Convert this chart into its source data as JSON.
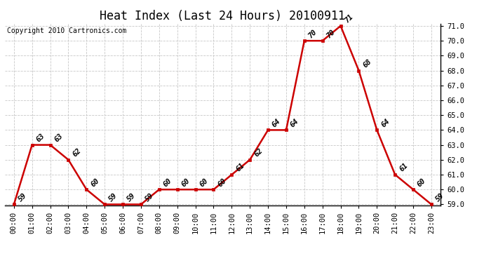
{
  "title": "Heat Index (Last 24 Hours) 20100911",
  "copyright_text": "Copyright 2010 Cartronics.com",
  "hours": [
    0,
    1,
    2,
    3,
    4,
    5,
    6,
    7,
    8,
    9,
    10,
    11,
    12,
    13,
    14,
    15,
    16,
    17,
    18,
    19,
    20,
    21,
    22,
    23
  ],
  "values": [
    59,
    63,
    63,
    62,
    60,
    59,
    59,
    59,
    60,
    60,
    60,
    60,
    61,
    62,
    64,
    64,
    70,
    70,
    71,
    68,
    64,
    61,
    60,
    59
  ],
  "ylim_min": 59.0,
  "ylim_max": 71.0,
  "yticks": [
    59.0,
    60.0,
    61.0,
    62.0,
    63.0,
    64.0,
    65.0,
    66.0,
    67.0,
    68.0,
    69.0,
    70.0,
    71.0
  ],
  "line_color": "#cc0000",
  "marker_color": "#cc0000",
  "background_color": "#ffffff",
  "grid_color": "#c8c8c8",
  "title_fontsize": 12,
  "tick_label_fontsize": 7.5,
  "annotation_fontsize": 7.5,
  "copyright_fontsize": 7
}
